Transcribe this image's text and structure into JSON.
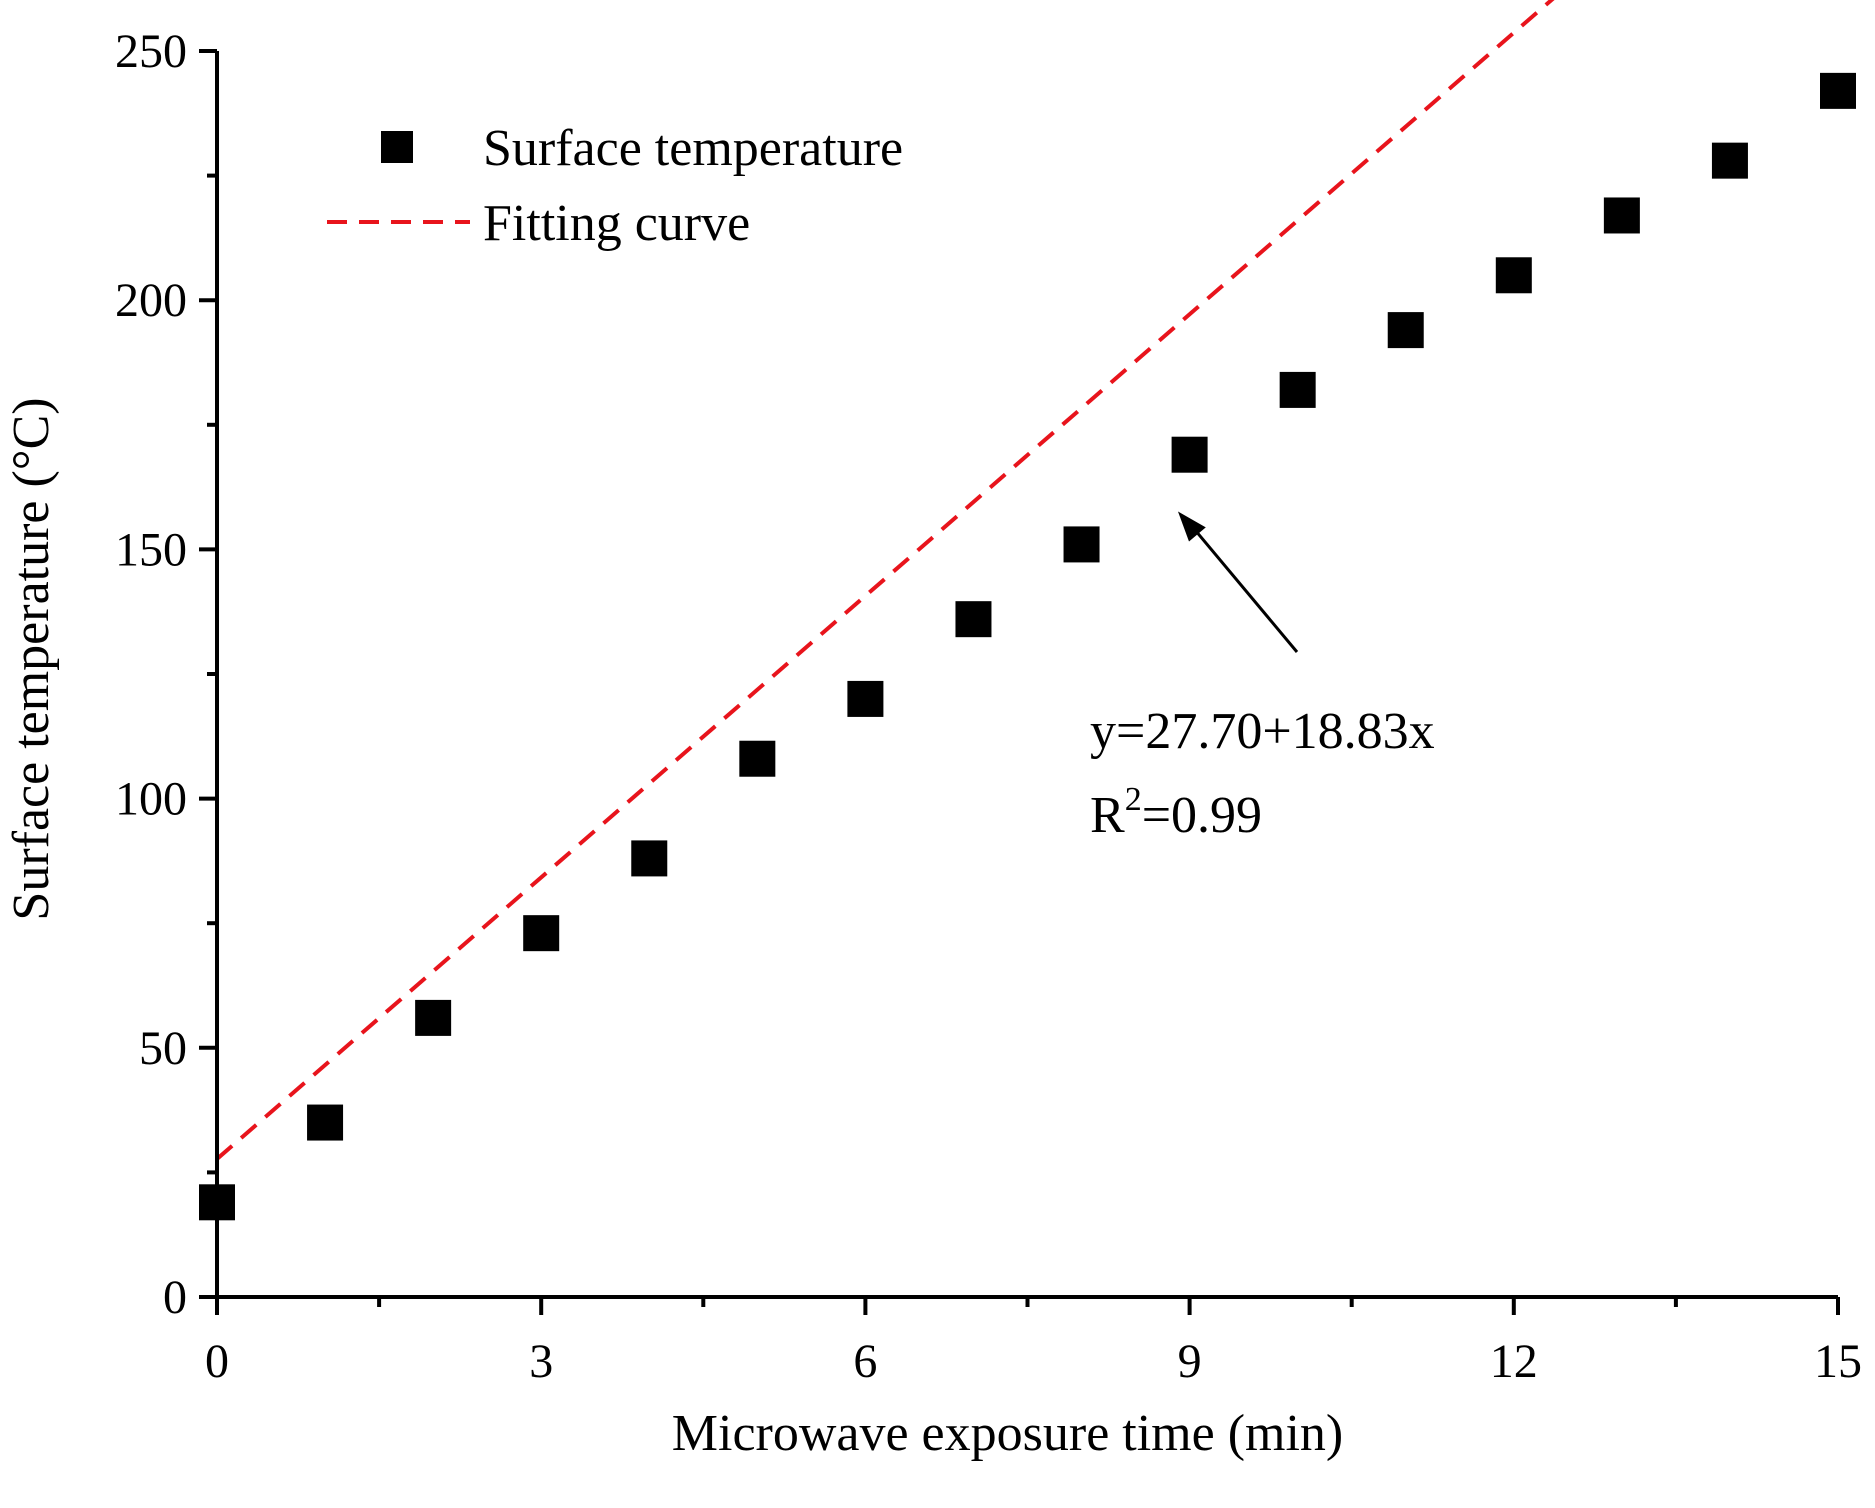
{
  "chart_data": {
    "type": "scatter",
    "xlabel": "Microwave exposure time (min)",
    "ylabel": "Surface temperature (°C)",
    "xlim": [
      0,
      15
    ],
    "ylim": [
      0,
      250
    ],
    "xticks": [
      0,
      3,
      6,
      9,
      12,
      15
    ],
    "yticks": [
      0,
      50,
      100,
      150,
      200,
      250
    ],
    "grid": false,
    "legend_position": "top-left",
    "series": [
      {
        "name": "Surface temperature",
        "kind": "scatter",
        "marker": "square",
        "color": "#000000",
        "x": [
          0,
          1,
          2,
          3,
          4,
          5,
          6,
          7,
          8,
          9,
          10,
          11,
          12,
          13,
          14,
          15
        ],
        "y": [
          19,
          35,
          56,
          73,
          88,
          108,
          120,
          136,
          151,
          169,
          182,
          194,
          205,
          217,
          228,
          242
        ]
      },
      {
        "name": "Fitting curve",
        "kind": "line",
        "style": "dashed",
        "color": "#e8141c",
        "intercept": 27.7,
        "slope": 18.83,
        "x_range": [
          0,
          15
        ]
      }
    ],
    "annotation": {
      "equation": "y=27.70+18.83x",
      "r2_prefix": "R",
      "r2_superscript": "2",
      "r2_value": "=0.99",
      "arrow_target": [
        8.8,
        160
      ]
    }
  }
}
